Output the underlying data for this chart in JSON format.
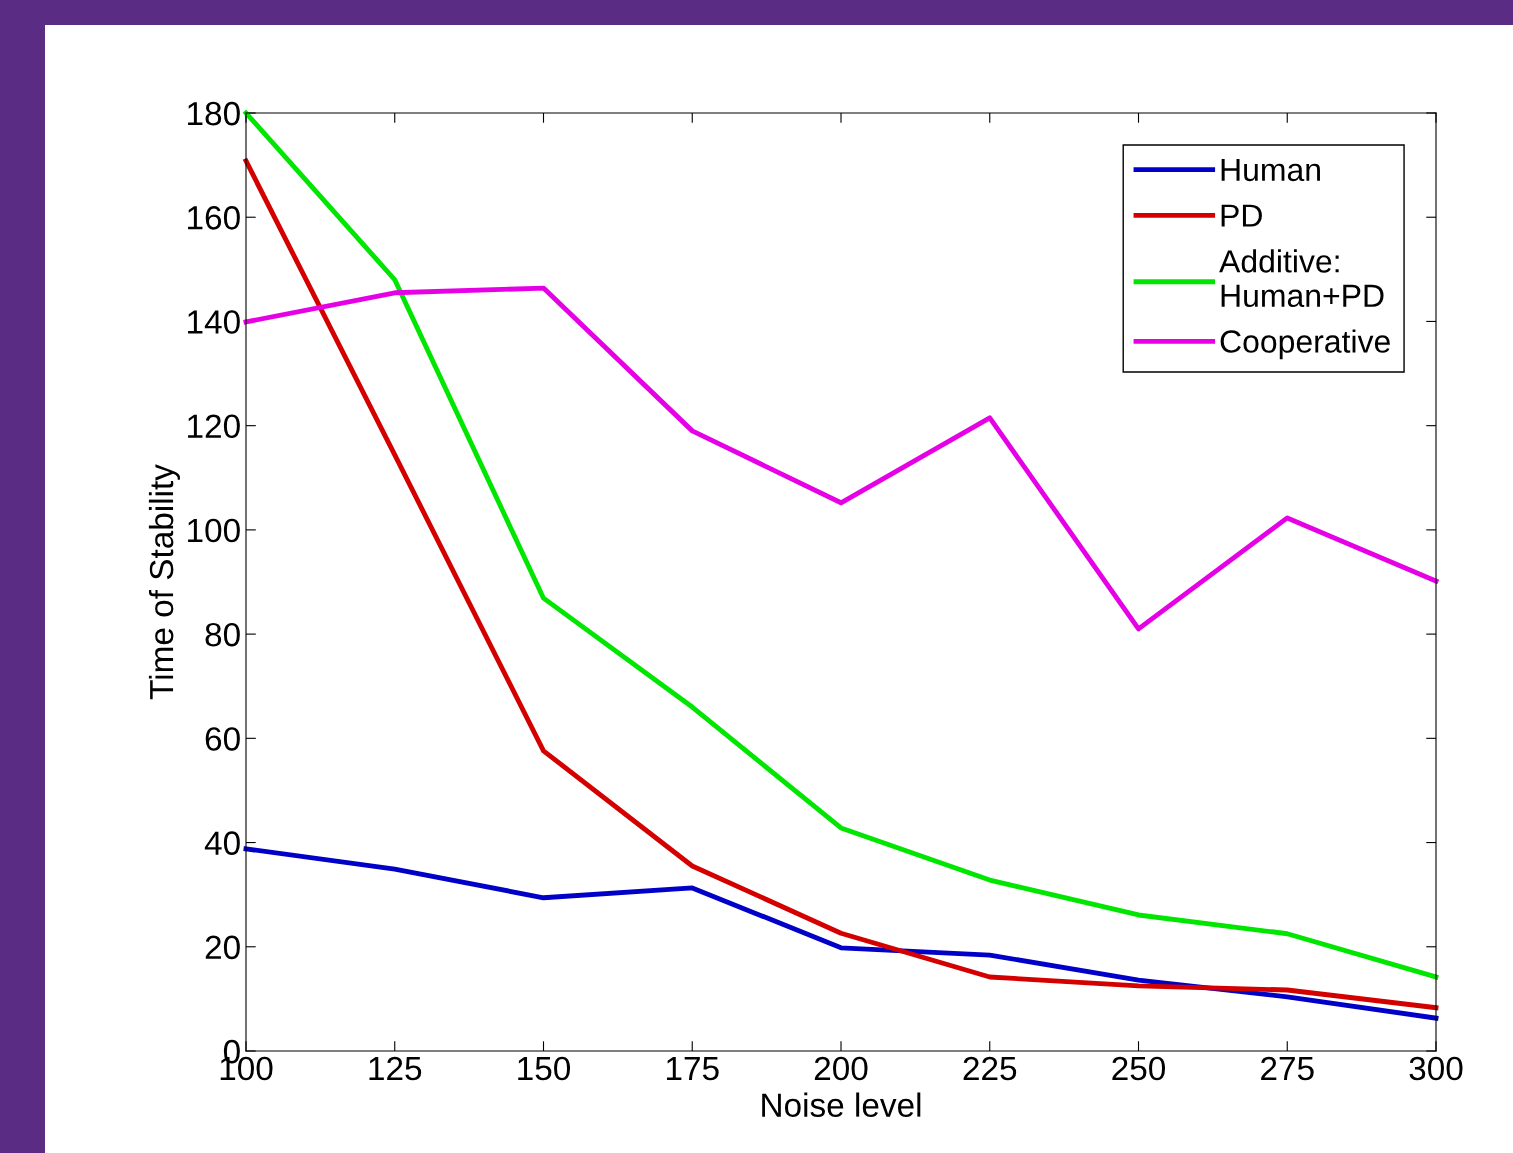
{
  "chart_data": {
    "type": "line",
    "xlabel": "Noise level",
    "ylabel": "Time of Stability",
    "x": [
      100,
      125,
      150,
      175,
      200,
      225,
      250,
      275,
      300
    ],
    "series": [
      {
        "name": "Human",
        "color": "#0000c8",
        "values": [
          38.8,
          34.9,
          29.4,
          31.3,
          19.8,
          18.4,
          13.6,
          10.4,
          6.3
        ]
      },
      {
        "name": "PD",
        "color": "#d40000",
        "values": [
          170.8,
          114.4,
          57.6,
          35.5,
          22.6,
          14.2,
          12.5,
          11.7,
          8.3
        ]
      },
      {
        "name": "Additive:\nHuman+PD",
        "color": "#00e600",
        "values": [
          180,
          148,
          86.9,
          66,
          42.8,
          32.8,
          26.1,
          22.5,
          14.2
        ]
      },
      {
        "name": "Cooperative",
        "color": "#e600e6",
        "values": [
          139.9,
          145.5,
          146.4,
          119,
          105.2,
          121.5,
          81,
          102.3,
          90.2
        ]
      }
    ],
    "xlim": [
      100,
      300
    ],
    "ylim": [
      0,
      180
    ],
    "xticks": [
      100,
      125,
      150,
      175,
      200,
      225,
      250,
      275,
      300
    ],
    "yticks": [
      0,
      20,
      40,
      60,
      80,
      100,
      120,
      140,
      160,
      180
    ],
    "grid": false,
    "legend": "top right",
    "line_style": "solid",
    "marker": "none"
  }
}
